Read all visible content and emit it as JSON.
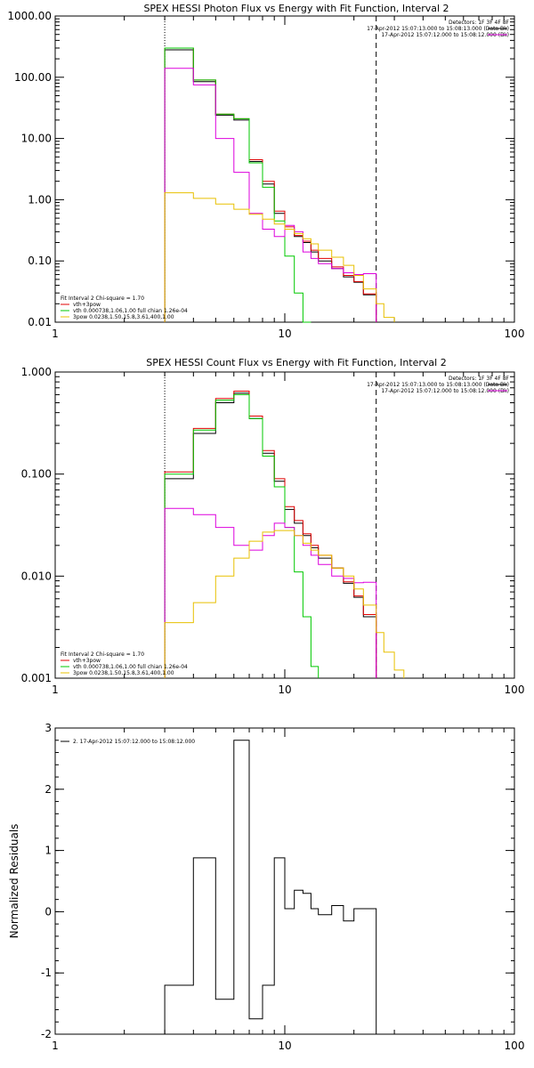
{
  "chart_data": [
    {
      "type": "line",
      "title": "SPEX HESSI Photon Flux vs Energy with Fit Function, Interval 2",
      "x_scale": "log",
      "y_scale": "log",
      "xlim": [
        1,
        100
      ],
      "ylim": [
        0.01,
        1000
      ],
      "x_tick_labels": [
        "1",
        "10",
        "100"
      ],
      "y_tick_labels": [
        "1000.00",
        "100.00",
        "10.00",
        "1.00",
        "0.10",
        "0.01"
      ],
      "y_ticks": [
        1000,
        100,
        10,
        1,
        0.1,
        0.01
      ],
      "x_ticks": [
        1,
        10,
        100
      ],
      "vlines": [
        {
          "x": 3,
          "style": "dotted"
        },
        {
          "x": 25,
          "style": "dashed"
        }
      ],
      "header_lines": [
        "Detectors: 1F 3F 4F 8F",
        "17-Apr-2012 15:07:13.000 to 15:08:13.000 (Data-Bk)",
        "17-Apr-2012 15:07:12.000 to 15:08:12.000 (Bk)"
      ],
      "legend": [
        "Fit Interval 2   Chi-square = 1.70",
        "vth+3pow",
        "vth 0.000738,1.06,1.00   full chian 1.26e-04",
        "3pow 0.0238,1.50,15.8,3.61,400,1.00"
      ],
      "series": [
        {
          "name": "data",
          "color": "#000000",
          "edges": [
            3,
            4,
            5,
            6,
            7,
            8,
            9,
            10,
            11,
            12,
            13,
            14,
            16,
            18,
            20,
            22,
            25
          ],
          "values": [
            280,
            85,
            24,
            20,
            4.2,
            1.8,
            0.6,
            0.33,
            0.25,
            0.2,
            0.14,
            0.1,
            0.075,
            0.055,
            0.045,
            0.028
          ]
        },
        {
          "name": "vth+3pow",
          "color": "#e00000",
          "edges": [
            3,
            4,
            5,
            6,
            7,
            8,
            9,
            10,
            11,
            12,
            13,
            14,
            16,
            18,
            20,
            22,
            25
          ],
          "values": [
            300,
            90,
            25,
            21,
            4.5,
            2.0,
            0.65,
            0.36,
            0.26,
            0.21,
            0.15,
            0.11,
            0.08,
            0.058,
            0.046,
            0.029
          ]
        },
        {
          "name": "vth",
          "color": "#00c800",
          "edges": [
            3,
            4,
            5,
            6,
            7,
            8,
            9,
            10,
            11,
            12,
            13
          ],
          "values": [
            300,
            90,
            25,
            21,
            4.0,
            1.6,
            0.45,
            0.12,
            0.03,
            0.01
          ]
        },
        {
          "name": "Bk",
          "color": "#dd00dd",
          "edges": [
            3,
            4,
            5,
            6,
            7,
            8,
            9,
            10,
            11,
            12,
            13,
            14,
            16,
            18,
            20,
            22,
            25
          ],
          "values": [
            140,
            75,
            10,
            2.8,
            0.6,
            0.33,
            0.25,
            0.38,
            0.3,
            0.14,
            0.11,
            0.09,
            0.075,
            0.064,
            0.06,
            0.062
          ]
        },
        {
          "name": "3pow",
          "color": "#e8c000",
          "edges": [
            3,
            4,
            5,
            6,
            7,
            8,
            9,
            10,
            11,
            12,
            13,
            14,
            16,
            18,
            20,
            22,
            25,
            27,
            30
          ],
          "values": [
            1.3,
            1.05,
            0.85,
            0.7,
            0.58,
            0.48,
            0.4,
            0.33,
            0.28,
            0.23,
            0.19,
            0.15,
            0.115,
            0.085,
            0.058,
            0.035,
            0.02,
            0.012
          ]
        }
      ]
    },
    {
      "type": "line",
      "title": "SPEX HESSI Count Flux vs Energy with Fit Function, Interval 2",
      "x_scale": "log",
      "y_scale": "log",
      "xlim": [
        1,
        100
      ],
      "ylim": [
        0.001,
        1
      ],
      "x_tick_labels": [
        "1",
        "10",
        "100"
      ],
      "y_tick_labels": [
        "1.000",
        "0.100",
        "0.010",
        "0.001"
      ],
      "y_ticks": [
        1,
        0.1,
        0.01,
        0.001
      ],
      "x_ticks": [
        1,
        10,
        100
      ],
      "vlines": [
        {
          "x": 3,
          "style": "dotted"
        },
        {
          "x": 25,
          "style": "dashed"
        }
      ],
      "header_lines": [
        "Detectors: 1F 3F 4F 8F",
        "17-Apr-2012 15:07:13.000 to 15:08:13.000 (Data-Bk)",
        "17-Apr-2012 15:07:12.000 to 15:08:12.000 (Bk)"
      ],
      "legend": [
        "Fit Interval 2   Chi-square = 1.70",
        "vth+3pow",
        "vth 0.000738,1.06,1.00   full chian 1.26e-04",
        "3pow 0.0238,1.50,15.8,3.61,400,1.00"
      ],
      "series": [
        {
          "name": "data",
          "color": "#000000",
          "edges": [
            3,
            4,
            5,
            6,
            7,
            8,
            9,
            10,
            11,
            12,
            13,
            14,
            16,
            18,
            20,
            22,
            25
          ],
          "values": [
            0.09,
            0.25,
            0.5,
            0.62,
            0.35,
            0.16,
            0.085,
            0.045,
            0.033,
            0.025,
            0.019,
            0.015,
            0.012,
            0.0085,
            0.0062,
            0.004
          ]
        },
        {
          "name": "vth+3pow",
          "color": "#e00000",
          "edges": [
            3,
            4,
            5,
            6,
            7,
            8,
            9,
            10,
            11,
            12,
            13,
            14,
            16,
            18,
            20,
            22,
            25
          ],
          "values": [
            0.105,
            0.28,
            0.55,
            0.65,
            0.37,
            0.17,
            0.09,
            0.048,
            0.035,
            0.026,
            0.02,
            0.016,
            0.012,
            0.0088,
            0.0064,
            0.0042
          ]
        },
        {
          "name": "vth",
          "color": "#00c800",
          "edges": [
            3,
            4,
            5,
            6,
            7,
            8,
            9,
            10,
            11,
            12,
            13,
            14
          ],
          "values": [
            0.1,
            0.27,
            0.53,
            0.6,
            0.35,
            0.15,
            0.075,
            0.03,
            0.011,
            0.004,
            0.0013
          ]
        },
        {
          "name": "Bk",
          "color": "#dd00dd",
          "edges": [
            3,
            4,
            5,
            6,
            7,
            8,
            9,
            10,
            11,
            12,
            13,
            14,
            16,
            18,
            20,
            22,
            25
          ],
          "values": [
            0.046,
            0.04,
            0.03,
            0.02,
            0.018,
            0.025,
            0.033,
            0.03,
            0.025,
            0.02,
            0.016,
            0.013,
            0.01,
            0.0095,
            0.0086,
            0.0087
          ]
        },
        {
          "name": "3pow",
          "color": "#e8c000",
          "edges": [
            3,
            4,
            5,
            6,
            7,
            8,
            9,
            10,
            11,
            12,
            13,
            14,
            16,
            18,
            20,
            22,
            25,
            27,
            30,
            33
          ],
          "values": [
            0.0035,
            0.0055,
            0.01,
            0.015,
            0.022,
            0.027,
            0.028,
            0.028,
            0.025,
            0.021,
            0.018,
            0.016,
            0.012,
            0.01,
            0.0075,
            0.0052,
            0.0028,
            0.0018,
            0.0012
          ]
        }
      ]
    },
    {
      "type": "line",
      "title": "",
      "x_scale": "log",
      "y_scale": "linear",
      "xlim": [
        1,
        100
      ],
      "ylim": [
        -2,
        3
      ],
      "x_tick_labels": [
        "1",
        "10",
        "100"
      ],
      "x_ticks": [
        1,
        10,
        100
      ],
      "y_ticks": [
        -2,
        -1,
        0,
        1,
        2,
        3
      ],
      "y_tick_labels": [
        "-2",
        "-1",
        "0",
        "1",
        "2",
        "3"
      ],
      "ylabel": "Normalized Residuals",
      "legend": [
        "2. 17-Apr-2012 15:07:12.000 to 15:08:12.000"
      ],
      "series": [
        {
          "name": "residuals",
          "color": "#000000",
          "edges": [
            3,
            4,
            5,
            6,
            7,
            8,
            9,
            10,
            11,
            12,
            13,
            14,
            16,
            18,
            20,
            22,
            25
          ],
          "values": [
            -1.2,
            0.88,
            -1.43,
            2.8,
            -1.75,
            -1.2,
            0.88,
            0.05,
            0.35,
            0.3,
            0.05,
            -0.05,
            0.1,
            -0.15,
            0.05,
            0.05
          ]
        }
      ]
    }
  ]
}
